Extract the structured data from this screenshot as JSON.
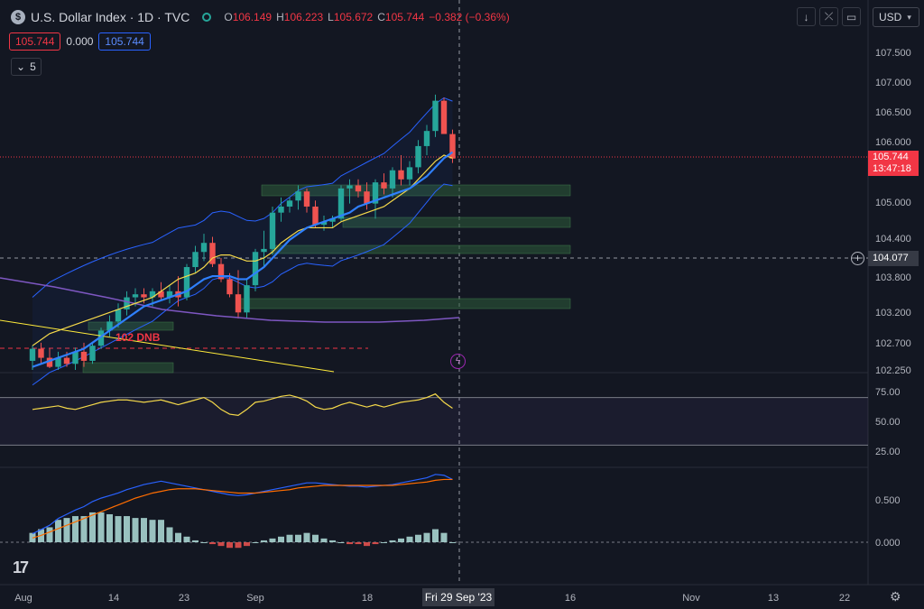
{
  "header": {
    "symbol_icon": "$",
    "title": "U.S. Dollar Index · 1D · TVC",
    "ohlc": {
      "o_label": "O",
      "o": "106.149",
      "h_label": "H",
      "h": "106.223",
      "l_label": "L",
      "l": "105.672",
      "c_label": "C",
      "c": "105.744"
    },
    "change": "−0.382 (−0.36%)",
    "box_red": "105.744",
    "box_mid": "0.000",
    "box_blue": "105.744",
    "indicator_count": "5",
    "currency": "USD",
    "buttons": [
      "arrow-down-icon",
      "collapse-icon",
      "fullscreen-icon"
    ]
  },
  "price_tag": {
    "price": "105.744",
    "countdown": "13:47:18"
  },
  "crosshair_tag": "104.077",
  "x_crosshair_tag": "Fri 29 Sep '23",
  "dnb_label": "102 DNB",
  "colors": {
    "bg": "#131722",
    "up": "#26a69a",
    "down": "#ef5350",
    "accent": "#2962ff"
  },
  "chart_data": {
    "type": "candlestick",
    "y_ticks": [
      "107.500",
      "107.000",
      "106.500",
      "106.000",
      "105.000",
      "104.400",
      "103.800",
      "103.200",
      "102.700",
      "102.250"
    ],
    "x_ticks": [
      "Aug",
      "14",
      "23",
      "Sep",
      "18",
      "16",
      "Nov",
      "13",
      "22"
    ],
    "candles": [
      [
        102.4,
        102.65,
        102.25,
        102.6
      ],
      [
        102.6,
        102.7,
        102.35,
        102.45
      ],
      [
        102.45,
        102.6,
        102.28,
        102.3
      ],
      [
        102.3,
        102.55,
        102.25,
        102.45
      ],
      [
        102.45,
        102.55,
        102.3,
        102.35
      ],
      [
        102.35,
        102.62,
        102.25,
        102.55
      ],
      [
        102.55,
        102.7,
        102.3,
        102.4
      ],
      [
        102.4,
        102.7,
        102.35,
        102.65
      ],
      [
        102.65,
        102.95,
        102.6,
        102.9
      ],
      [
        102.9,
        103.15,
        102.8,
        103.05
      ],
      [
        103.05,
        103.35,
        102.95,
        103.25
      ],
      [
        103.25,
        103.55,
        103.15,
        103.45
      ],
      [
        103.45,
        103.6,
        103.3,
        103.5
      ],
      [
        103.5,
        103.6,
        103.35,
        103.45
      ],
      [
        103.45,
        103.6,
        103.3,
        103.55
      ],
      [
        103.55,
        103.7,
        103.4,
        103.45
      ],
      [
        103.45,
        103.65,
        103.35,
        103.55
      ],
      [
        103.55,
        103.8,
        103.3,
        103.45
      ],
      [
        103.45,
        104.0,
        103.4,
        103.95
      ],
      [
        103.95,
        104.3,
        103.85,
        104.2
      ],
      [
        104.2,
        104.5,
        104.05,
        104.35
      ],
      [
        104.35,
        104.45,
        103.95,
        104.0
      ],
      [
        104.0,
        104.1,
        103.7,
        103.75
      ],
      [
        103.75,
        103.85,
        103.45,
        103.5
      ],
      [
        103.5,
        103.9,
        103.1,
        103.2
      ],
      [
        103.2,
        103.75,
        103.1,
        103.65
      ],
      [
        103.65,
        104.25,
        103.55,
        104.2
      ],
      [
        104.2,
        104.55,
        103.95,
        104.25
      ],
      [
        104.25,
        104.95,
        104.15,
        104.85
      ],
      [
        104.85,
        105.1,
        104.7,
        104.95
      ],
      [
        104.95,
        105.1,
        104.85,
        105.05
      ],
      [
        105.05,
        105.3,
        104.9,
        105.2
      ],
      [
        105.2,
        105.25,
        104.85,
        104.95
      ],
      [
        104.95,
        105.05,
        104.6,
        104.65
      ],
      [
        104.65,
        104.8,
        104.55,
        104.7
      ],
      [
        104.7,
        104.8,
        104.6,
        104.75
      ],
      [
        104.75,
        105.3,
        104.7,
        105.25
      ],
      [
        105.25,
        105.4,
        105.0,
        105.3
      ],
      [
        105.3,
        105.4,
        105.1,
        105.2
      ],
      [
        105.2,
        105.35,
        104.9,
        105.0
      ],
      [
        105.0,
        105.4,
        104.75,
        105.35
      ],
      [
        105.35,
        105.5,
        105.15,
        105.25
      ],
      [
        105.25,
        105.6,
        105.1,
        105.55
      ],
      [
        105.55,
        105.8,
        105.3,
        105.4
      ],
      [
        105.4,
        105.7,
        105.3,
        105.6
      ],
      [
        105.6,
        106.05,
        105.5,
        105.95
      ],
      [
        105.95,
        106.3,
        105.8,
        106.2
      ],
      [
        106.2,
        106.8,
        106.1,
        106.7
      ],
      [
        106.7,
        106.75,
        106.15,
        106.15
      ],
      [
        106.149,
        106.223,
        105.672,
        105.744
      ]
    ],
    "ema_fast": [
      102.3,
      102.35,
      102.4,
      102.45,
      102.5,
      102.55,
      102.6,
      102.7,
      102.8,
      102.9,
      103.0,
      103.1,
      103.2,
      103.3,
      103.35,
      103.4,
      103.45,
      103.5,
      103.55,
      103.65,
      103.75,
      103.8,
      103.8,
      103.8,
      103.75,
      103.75,
      103.85,
      103.95,
      104.1,
      104.25,
      104.4,
      104.5,
      104.6,
      104.65,
      104.7,
      104.75,
      104.8,
      104.85,
      104.95,
      105.0,
      105.05,
      105.1,
      105.15,
      105.2,
      105.25,
      105.35,
      105.45,
      105.6,
      105.75,
      105.85
    ],
    "sma_yellow": [
      102.9,
      103.0,
      103.1,
      103.15,
      103.2,
      103.25,
      103.3,
      103.35,
      103.4,
      103.45,
      103.5,
      103.55,
      103.6,
      103.65,
      103.7,
      103.8,
      103.9,
      104.0,
      104.05,
      104.1,
      104.2,
      104.35,
      104.4,
      104.4,
      104.35,
      104.3,
      104.3,
      104.35,
      104.45,
      104.6,
      104.7,
      104.8,
      104.85,
      104.85,
      104.85,
      104.85,
      104.95,
      105.0,
      105.05,
      105.1,
      105.15,
      105.2,
      105.3,
      105.4,
      105.5,
      105.65,
      105.8,
      105.95,
      106.05,
      106.0
    ],
    "macd_line": [
      0.1,
      0.15,
      0.2,
      0.28,
      0.33,
      0.38,
      0.42,
      0.48,
      0.52,
      0.55,
      0.58,
      0.62,
      0.65,
      0.68,
      0.7,
      0.72,
      0.7,
      0.68,
      0.66,
      0.64,
      0.62,
      0.6,
      0.58,
      0.56,
      0.55,
      0.56,
      0.58,
      0.6,
      0.62,
      0.64,
      0.66,
      0.68,
      0.7,
      0.7,
      0.69,
      0.68,
      0.67,
      0.66,
      0.66,
      0.65,
      0.66,
      0.67,
      0.68,
      0.7,
      0.72,
      0.74,
      0.76,
      0.8,
      0.79,
      0.74
    ],
    "macd_signal": [
      0.05,
      0.08,
      0.12,
      0.16,
      0.2,
      0.24,
      0.28,
      0.32,
      0.36,
      0.4,
      0.44,
      0.48,
      0.52,
      0.55,
      0.58,
      0.6,
      0.62,
      0.63,
      0.63,
      0.63,
      0.62,
      0.61,
      0.6,
      0.59,
      0.58,
      0.58,
      0.58,
      0.59,
      0.6,
      0.61,
      0.62,
      0.64,
      0.65,
      0.66,
      0.67,
      0.67,
      0.67,
      0.67,
      0.67,
      0.67,
      0.67,
      0.67,
      0.67,
      0.68,
      0.69,
      0.7,
      0.71,
      0.73,
      0.74,
      0.74
    ],
    "rsi": [
      60,
      61,
      62,
      63,
      61,
      60,
      62,
      64,
      66,
      67,
      68,
      68,
      67,
      66,
      67,
      68,
      66,
      64,
      66,
      68,
      70,
      66,
      60,
      56,
      55,
      60,
      66,
      67,
      69,
      71,
      72,
      70,
      67,
      62,
      60,
      61,
      64,
      66,
      64,
      62,
      64,
      62,
      64,
      66,
      67,
      68,
      70,
      73,
      66,
      61
    ],
    "y_ticks_rsi": [
      "75.00",
      "50.00",
      "25.00"
    ],
    "y_ticks_macd": [
      "0.500",
      "0.000"
    ]
  }
}
